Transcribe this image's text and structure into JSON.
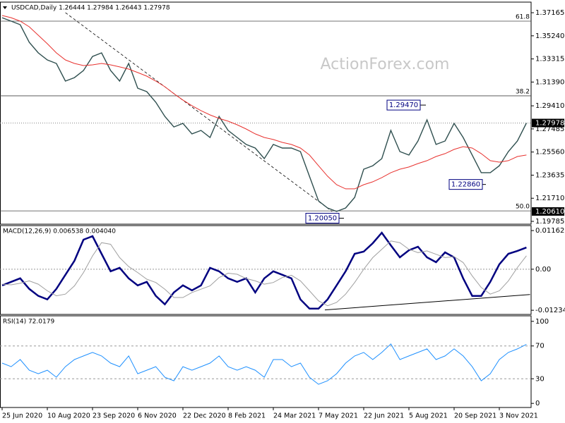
{
  "chart_data": [
    {
      "type": "line",
      "title": "USDCAD,Daily  1.26444 1.27984 1.26443 1.27978",
      "watermark": "ActionForex.com",
      "categories": [
        "25 Jun 2020",
        null,
        null,
        null,
        null,
        "10 Aug 2020",
        null,
        null,
        null,
        null,
        "23 Sep 2020",
        null,
        null,
        null,
        null,
        "6 Nov 2020",
        null,
        null,
        null,
        null,
        "22 Dec 2020",
        null,
        null,
        null,
        null,
        "8 Feb 2021",
        null,
        null,
        null,
        null,
        "24 Mar 2021",
        null,
        null,
        null,
        null,
        "7 May 2021",
        null,
        null,
        null,
        null,
        "22 Jun 2021",
        null,
        null,
        null,
        null,
        "5 Aug 2021",
        null,
        null,
        null,
        null,
        "20 Sep 2021",
        null,
        null,
        null,
        null,
        "3 Nov 2021",
        null,
        null,
        null
      ],
      "series": [
        {
          "color": "#2f4f4f",
          "values": [
            1.3675,
            1.3646,
            1.3617,
            1.347,
            1.3382,
            1.3323,
            1.3294,
            1.3147,
            1.3176,
            1.3235,
            1.3352,
            1.3382,
            1.3235,
            1.3147,
            1.3294,
            1.3088,
            1.3059,
            1.2971,
            1.2853,
            1.2765,
            1.2795,
            1.2707,
            1.2736,
            1.2677,
            1.2853,
            1.2736,
            1.2677,
            1.2619,
            1.2589,
            1.2501,
            1.2619,
            1.2589,
            1.2589,
            1.256,
            1.2354,
            1.2149,
            1.209,
            1.2061,
            1.209,
            1.2178,
            1.2413,
            1.2442,
            1.2501,
            1.2736,
            1.256,
            1.2531,
            1.2648,
            1.2824,
            1.2619,
            1.2648,
            1.2795,
            1.2677,
            1.2531,
            1.2384,
            1.2384,
            1.2442,
            1.256,
            1.2648,
            1.27978
          ]
        },
        {
          "color": "#e8322f",
          "values": [
            1.3693,
            1.3675,
            1.3646,
            1.3599,
            1.3529,
            1.3458,
            1.3382,
            1.3323,
            1.3294,
            1.3276,
            1.3282,
            1.3294,
            1.3282,
            1.3265,
            1.3247,
            1.3218,
            1.3188,
            1.3147,
            1.31,
            1.3042,
            1.2989,
            1.2942,
            1.2901,
            1.2865,
            1.2836,
            1.2813,
            1.2783,
            1.2748,
            1.2707,
            1.2677,
            1.266,
            1.2636,
            1.2619,
            1.2589,
            1.2531,
            1.2442,
            1.2355,
            1.2284,
            1.2249,
            1.2249,
            1.2284,
            1.2308,
            1.2343,
            1.2384,
            1.2413,
            1.2431,
            1.246,
            1.2484,
            1.2519,
            1.2543,
            1.2578,
            1.2601,
            1.2589,
            1.2543,
            1.2484,
            1.2472,
            1.2484,
            1.2519,
            1.2531
          ]
        }
      ],
      "ylim": [
        1.1955,
        1.3793
      ],
      "yticks": [
        {
          "value": 1.37165,
          "label": "1.37165"
        },
        {
          "value": 1.3524,
          "label": "1.35240"
        },
        {
          "value": 1.33315,
          "label": "1.33315"
        },
        {
          "value": 1.3139,
          "label": "1.31390"
        },
        {
          "value": 1.2941,
          "label": "1.29410"
        },
        {
          "value": 1.27485,
          "label": "1.27485"
        },
        {
          "value": 1.2556,
          "label": "1.25560"
        },
        {
          "value": 1.23635,
          "label": "1.23635"
        },
        {
          "value": 1.2171,
          "label": "1.21710"
        },
        {
          "value": 1.19785,
          "label": "1.19785"
        }
      ],
      "levels": [
        {
          "value": 1.3646,
          "label": "61.8"
        },
        {
          "value": 1.3024,
          "label": "38.2"
        },
        {
          "value": 1.2066,
          "label": "50.0"
        }
      ],
      "price_labels": [
        {
          "value": 1.27978,
          "label": "1.27978"
        },
        {
          "value": 1.2061,
          "label": "1.20610"
        }
      ],
      "annotations": [
        {
          "value": 1.2947,
          "label": "1.29470"
        },
        {
          "value": 1.2286,
          "label": "1.22860"
        },
        {
          "value": 1.2005,
          "label": "1.20050"
        }
      ],
      "trendline": {
        "x": [
          7,
          36.5
        ],
        "values": [
          1.3717,
          1.2061
        ]
      }
    },
    {
      "type": "line",
      "title": "MACD(12,26,9) 0.006538 0.004040",
      "series": [
        {
          "color": "#000080",
          "values": [
            -0.00486,
            -0.00381,
            -0.00275,
            -0.00592,
            -0.00803,
            -0.00909,
            -0.00592,
            -0.00169,
            0.00254,
            0.00888,
            0.00994,
            0.00465,
            -0.00063,
            0.00042,
            -0.00275,
            -0.00486,
            -0.00381,
            -0.00803,
            -0.01057,
            -0.00698,
            -0.00486,
            -0.00634,
            -0.00486,
            0.00042,
            -0.00063,
            -0.00275,
            -0.00381,
            -0.00275,
            -0.00698,
            -0.00275,
            -0.00063,
            -0.00169,
            -0.00275,
            -0.00909,
            -0.01184,
            -0.01184,
            -0.00909,
            -0.00486,
            -0.00063,
            0.00465,
            0.00529,
            0.00782,
            0.01099,
            0.00719,
            0.00359,
            0.00571,
            0.00677,
            0.00359,
            0.00211,
            0.00507,
            0.00359,
            -0.00275,
            -0.00803,
            -0.00803,
            -0.00381,
            0.00148,
            0.00465,
            0.0055,
            0.006538
          ]
        },
        {
          "color": "#a0a0a0",
          "values": [
            -0.0045,
            -0.0047,
            -0.0042,
            -0.0035,
            -0.0045,
            -0.0065,
            -0.008,
            -0.0075,
            -0.005,
            -0.001,
            0.004,
            0.008,
            0.0075,
            0.0035,
            0.0008,
            -0.001,
            -0.003,
            -0.004,
            -0.006,
            -0.0085,
            -0.0085,
            -0.007,
            -0.006,
            -0.005,
            -0.0025,
            -0.0012,
            -0.0015,
            -0.0028,
            -0.0035,
            -0.0045,
            -0.004,
            -0.0025,
            -0.0018,
            -0.0035,
            -0.0065,
            -0.0095,
            -0.011,
            -0.01,
            -0.0075,
            -0.004,
            0.0,
            0.0035,
            0.006,
            0.0085,
            0.008,
            0.006,
            0.005,
            0.0055,
            0.0045,
            0.0035,
            0.0038,
            0.002,
            -0.002,
            -0.0055,
            -0.0075,
            -0.0065,
            -0.0035,
            0.0005,
            0.00404
          ]
        }
      ],
      "ylim": [
        -0.0136,
        0.0127
      ],
      "yticks": [
        0.011629,
        {
          "value": 0,
          "label": "0.00"
        },
        -0.012348
      ],
      "trendline": {
        "x": [
          35.7,
          58.4
        ],
        "values": [
          -0.01226,
          -0.00761
        ]
      }
    },
    {
      "type": "line",
      "title": "RSI(14) 72.0179",
      "series": [
        {
          "color": "#1e90ff",
          "values": [
            49.1,
            44.8,
            53.4,
            40.5,
            36.2,
            40.5,
            31.9,
            44.8,
            53.4,
            57.8,
            62.1,
            57.8,
            49.1,
            44.8,
            57.8,
            36.2,
            40.5,
            44.8,
            31.9,
            27.6,
            44.8,
            40.5,
            44.8,
            49.1,
            57.8,
            44.8,
            40.5,
            44.8,
            40.5,
            31.9,
            53.4,
            53.4,
            44.8,
            49.1,
            31.9,
            23.3,
            27.6,
            36.2,
            49.1,
            57.8,
            62.1,
            53.4,
            62.1,
            72.4,
            53.4,
            57.8,
            62.1,
            66.4,
            53.4,
            57.8,
            66.4,
            57.8,
            44.8,
            27.6,
            36.2,
            53.4,
            62.1,
            66.4,
            72.0179
          ]
        }
      ],
      "ylim": [
        -5,
        105
      ],
      "yticks": [
        100,
        70,
        30,
        0
      ],
      "dashed_lines": [
        70,
        30
      ]
    }
  ]
}
